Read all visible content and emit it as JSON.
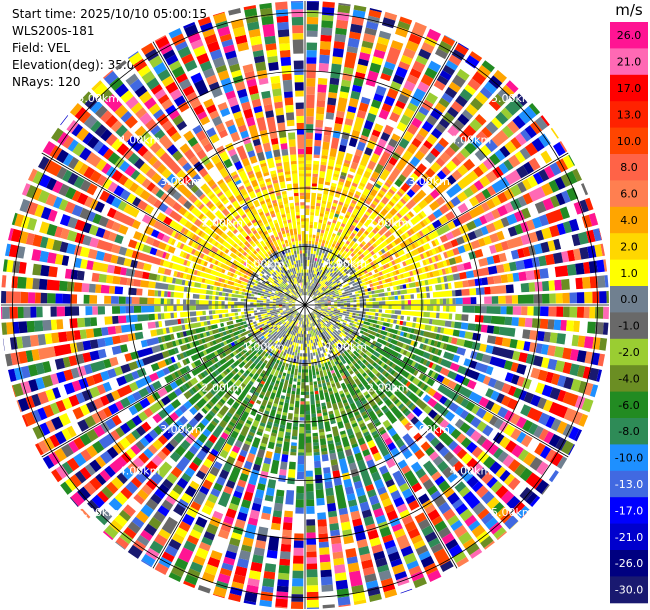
{
  "header": {
    "start_time": "Start time: 2025/10/10 05:00:15",
    "instrument": "WLS200s-181",
    "field": "Field: VEL",
    "elevation": "Elevation(deg): 35.00",
    "nrays": "NRays: 120"
  },
  "chart_data": {
    "type": "heatmap",
    "projection": "polar-ppi",
    "nrays": 120,
    "range_rings_km": [
      1,
      2,
      3,
      4,
      5
    ],
    "ring_labels": [
      "1.00km",
      "2.00km",
      "3.00km",
      "4.00km",
      "5.00km"
    ],
    "colorbar": {
      "unit": "m/s",
      "ticks": [
        "26.0",
        "21.0",
        "17.0",
        "13.0",
        "10.0",
        "8.0",
        "6.0",
        "4.0",
        "2.0",
        "1.0",
        "0.0",
        "-1.0",
        "-2.0",
        "-4.0",
        "-6.0",
        "-8.0",
        "-10.0",
        "-13.0",
        "-17.0",
        "-21.0",
        "-26.0",
        "-30.0"
      ],
      "colors": [
        "#ff1493",
        "#ff69b4",
        "#ff0000",
        "#ff2200",
        "#ff4500",
        "#ff6347",
        "#ff7f50",
        "#ffa500",
        "#ffd700",
        "#ffff00",
        "#708090",
        "#696969",
        "#9acd32",
        "#6b8e23",
        "#228b22",
        "#2e8b57",
        "#1e90ff",
        "#4169e1",
        "#0000ff",
        "#0000cd",
        "#000080",
        "#191970"
      ]
    }
  }
}
